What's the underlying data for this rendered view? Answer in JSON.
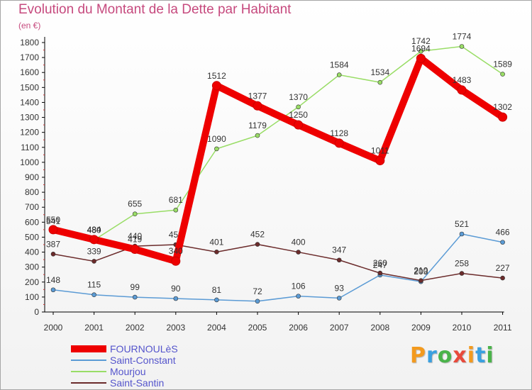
{
  "title": "Evolution du Montant de la Dette par Habitant",
  "subtitle": "(en €)",
  "chart_data": {
    "type": "line",
    "x": [
      "2000",
      "2001",
      "2002",
      "2003",
      "2004",
      "2005",
      "2006",
      "2007",
      "2008",
      "2009",
      "2010",
      "2011"
    ],
    "ylim": [
      0,
      1800
    ],
    "yticks": [
      0,
      100,
      200,
      300,
      400,
      500,
      600,
      700,
      800,
      900,
      1000,
      1100,
      1200,
      1300,
      1400,
      1500,
      1600,
      1700,
      1800
    ],
    "grid": false,
    "legend": "bottom-left",
    "series": [
      {
        "name": "FOURNOULèS",
        "color": "#ee0000",
        "values": [
          550,
          484,
          419,
          340,
          1512,
          1377,
          1250,
          1128,
          1011,
          1694,
          1483,
          1302
        ]
      },
      {
        "name": "Saint-Constant",
        "color": "#5b9bd5",
        "values": [
          148,
          115,
          99,
          90,
          81,
          72,
          106,
          93,
          247,
          203,
          521,
          466
        ]
      },
      {
        "name": "Mourjou",
        "color": "#99dd66",
        "values": [
          541,
          480,
          655,
          681,
          1090,
          1179,
          1370,
          1584,
          1534,
          1742,
          1774,
          1589
        ]
      },
      {
        "name": "Saint-Santin",
        "color": "#6b2b2b",
        "values": [
          387,
          339,
          440,
          450,
          401,
          452,
          400,
          347,
          260,
          210,
          258,
          227
        ]
      }
    ]
  },
  "logo": {
    "letters": [
      "P",
      "r",
      "o",
      "x",
      "i",
      "t",
      "i"
    ],
    "colors": [
      "#f39a1e",
      "#3aa0e0",
      "#4ab34a",
      "#e84a3c",
      "#f39a1e",
      "#3aa0e0",
      "#4ab34a"
    ]
  }
}
